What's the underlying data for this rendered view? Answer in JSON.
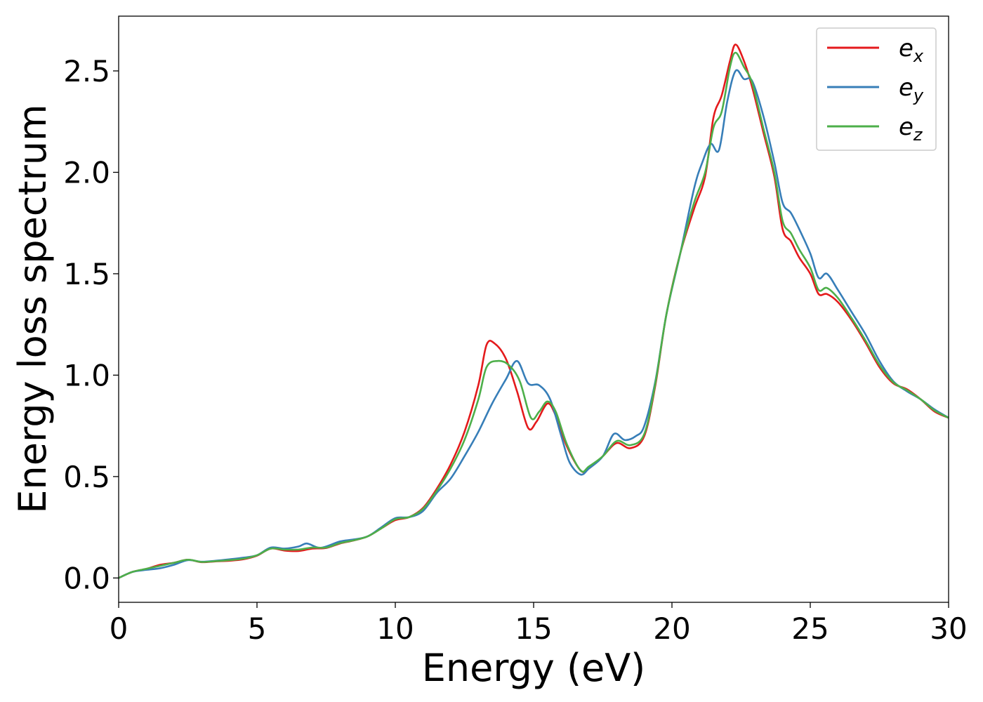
{
  "chart_data": {
    "type": "line",
    "title": "",
    "xlabel": "Energy (eV)",
    "ylabel": "Energy loss spectrum",
    "xlim": [
      0,
      30
    ],
    "ylim": [
      -0.12,
      2.77
    ],
    "xticks": [
      0,
      5,
      10,
      15,
      20,
      25,
      30
    ],
    "xtick_labels": [
      "0",
      "5",
      "10",
      "15",
      "20",
      "25",
      "30"
    ],
    "yticks": [
      0.0,
      0.5,
      1.0,
      1.5,
      2.0,
      2.5
    ],
    "ytick_labels": [
      "0.0",
      "0.5",
      "1.0",
      "1.5",
      "2.0",
      "2.5"
    ],
    "grid": false,
    "legend_position": "top-right",
    "series": [
      {
        "name": "e_x",
        "label_base": "e",
        "label_sub": "x",
        "color": "#e41a1c",
        "points": [
          [
            0,
            0.0
          ],
          [
            0.5,
            0.03
          ],
          [
            1.0,
            0.045
          ],
          [
            1.5,
            0.065
          ],
          [
            2.0,
            0.075
          ],
          [
            2.5,
            0.09
          ],
          [
            3.0,
            0.078
          ],
          [
            3.5,
            0.082
          ],
          [
            4.0,
            0.085
          ],
          [
            4.5,
            0.092
          ],
          [
            5.0,
            0.11
          ],
          [
            5.5,
            0.145
          ],
          [
            6.0,
            0.135
          ],
          [
            6.5,
            0.133
          ],
          [
            7.0,
            0.145
          ],
          [
            7.5,
            0.148
          ],
          [
            8.0,
            0.17
          ],
          [
            8.5,
            0.185
          ],
          [
            9.0,
            0.205
          ],
          [
            9.5,
            0.245
          ],
          [
            10.0,
            0.285
          ],
          [
            10.5,
            0.3
          ],
          [
            11.0,
            0.345
          ],
          [
            11.5,
            0.44
          ],
          [
            12.0,
            0.56
          ],
          [
            12.5,
            0.72
          ],
          [
            13.0,
            0.95
          ],
          [
            13.3,
            1.15
          ],
          [
            13.6,
            1.155
          ],
          [
            14.0,
            1.08
          ],
          [
            14.4,
            0.92
          ],
          [
            14.8,
            0.74
          ],
          [
            15.1,
            0.77
          ],
          [
            15.5,
            0.86
          ],
          [
            15.8,
            0.8
          ],
          [
            16.2,
            0.65
          ],
          [
            16.7,
            0.53
          ],
          [
            17.0,
            0.54
          ],
          [
            17.5,
            0.6
          ],
          [
            18.0,
            0.665
          ],
          [
            18.5,
            0.64
          ],
          [
            19.0,
            0.7
          ],
          [
            19.4,
            0.95
          ],
          [
            19.8,
            1.3
          ],
          [
            20.3,
            1.6
          ],
          [
            20.8,
            1.82
          ],
          [
            21.2,
            1.98
          ],
          [
            21.5,
            2.27
          ],
          [
            21.8,
            2.38
          ],
          [
            22.1,
            2.55
          ],
          [
            22.3,
            2.63
          ],
          [
            22.6,
            2.55
          ],
          [
            22.9,
            2.42
          ],
          [
            23.3,
            2.2
          ],
          [
            23.7,
            1.98
          ],
          [
            24.0,
            1.72
          ],
          [
            24.3,
            1.66
          ],
          [
            24.6,
            1.58
          ],
          [
            25.0,
            1.5
          ],
          [
            25.3,
            1.4
          ],
          [
            25.6,
            1.4
          ],
          [
            26.0,
            1.36
          ],
          [
            26.5,
            1.27
          ],
          [
            27.0,
            1.16
          ],
          [
            27.5,
            1.04
          ],
          [
            28.0,
            0.96
          ],
          [
            28.5,
            0.93
          ],
          [
            29.0,
            0.88
          ],
          [
            29.5,
            0.82
          ],
          [
            30.0,
            0.79
          ]
        ]
      },
      {
        "name": "e_y",
        "label_base": "e",
        "label_sub": "y",
        "color": "#377eb8",
        "points": [
          [
            0,
            0.0
          ],
          [
            0.5,
            0.03
          ],
          [
            1.0,
            0.04
          ],
          [
            1.5,
            0.048
          ],
          [
            2.0,
            0.065
          ],
          [
            2.5,
            0.088
          ],
          [
            3.0,
            0.08
          ],
          [
            3.5,
            0.085
          ],
          [
            4.0,
            0.092
          ],
          [
            4.5,
            0.1
          ],
          [
            5.0,
            0.112
          ],
          [
            5.5,
            0.15
          ],
          [
            6.0,
            0.145
          ],
          [
            6.5,
            0.155
          ],
          [
            6.8,
            0.17
          ],
          [
            7.2,
            0.15
          ],
          [
            7.5,
            0.155
          ],
          [
            8.0,
            0.18
          ],
          [
            8.5,
            0.19
          ],
          [
            9.0,
            0.205
          ],
          [
            9.5,
            0.25
          ],
          [
            10.0,
            0.295
          ],
          [
            10.5,
            0.3
          ],
          [
            11.0,
            0.33
          ],
          [
            11.5,
            0.42
          ],
          [
            12.0,
            0.49
          ],
          [
            12.5,
            0.6
          ],
          [
            13.0,
            0.72
          ],
          [
            13.5,
            0.86
          ],
          [
            14.0,
            0.98
          ],
          [
            14.4,
            1.07
          ],
          [
            14.8,
            0.96
          ],
          [
            15.2,
            0.95
          ],
          [
            15.6,
            0.88
          ],
          [
            16.0,
            0.7
          ],
          [
            16.3,
            0.57
          ],
          [
            16.7,
            0.51
          ],
          [
            17.0,
            0.54
          ],
          [
            17.5,
            0.6
          ],
          [
            17.9,
            0.71
          ],
          [
            18.3,
            0.68
          ],
          [
            18.7,
            0.7
          ],
          [
            19.0,
            0.75
          ],
          [
            19.4,
            0.97
          ],
          [
            19.8,
            1.3
          ],
          [
            20.3,
            1.6
          ],
          [
            20.8,
            1.92
          ],
          [
            21.1,
            2.05
          ],
          [
            21.4,
            2.14
          ],
          [
            21.7,
            2.11
          ],
          [
            22.0,
            2.35
          ],
          [
            22.3,
            2.5
          ],
          [
            22.6,
            2.46
          ],
          [
            22.9,
            2.45
          ],
          [
            23.3,
            2.28
          ],
          [
            23.7,
            2.05
          ],
          [
            24.0,
            1.85
          ],
          [
            24.3,
            1.8
          ],
          [
            24.6,
            1.72
          ],
          [
            25.0,
            1.6
          ],
          [
            25.3,
            1.48
          ],
          [
            25.6,
            1.5
          ],
          [
            26.0,
            1.42
          ],
          [
            26.5,
            1.31
          ],
          [
            27.0,
            1.2
          ],
          [
            27.5,
            1.07
          ],
          [
            28.0,
            0.97
          ],
          [
            28.5,
            0.92
          ],
          [
            29.0,
            0.88
          ],
          [
            29.5,
            0.83
          ],
          [
            30.0,
            0.79
          ]
        ]
      },
      {
        "name": "e_z",
        "label_base": "e",
        "label_sub": "z",
        "color": "#4daf4a",
        "points": [
          [
            0,
            0.0
          ],
          [
            0.5,
            0.03
          ],
          [
            1.0,
            0.045
          ],
          [
            1.5,
            0.06
          ],
          [
            2.0,
            0.075
          ],
          [
            2.5,
            0.09
          ],
          [
            3.0,
            0.079
          ],
          [
            3.5,
            0.083
          ],
          [
            4.0,
            0.088
          ],
          [
            4.5,
            0.095
          ],
          [
            5.0,
            0.112
          ],
          [
            5.5,
            0.145
          ],
          [
            6.0,
            0.14
          ],
          [
            6.5,
            0.14
          ],
          [
            7.0,
            0.15
          ],
          [
            7.5,
            0.15
          ],
          [
            8.0,
            0.172
          ],
          [
            8.5,
            0.186
          ],
          [
            9.0,
            0.205
          ],
          [
            9.5,
            0.245
          ],
          [
            10.0,
            0.29
          ],
          [
            10.5,
            0.3
          ],
          [
            11.0,
            0.34
          ],
          [
            11.5,
            0.43
          ],
          [
            12.0,
            0.54
          ],
          [
            12.5,
            0.68
          ],
          [
            13.0,
            0.88
          ],
          [
            13.3,
            1.04
          ],
          [
            13.7,
            1.07
          ],
          [
            14.1,
            1.05
          ],
          [
            14.5,
            0.97
          ],
          [
            14.9,
            0.79
          ],
          [
            15.2,
            0.82
          ],
          [
            15.5,
            0.87
          ],
          [
            15.8,
            0.82
          ],
          [
            16.2,
            0.66
          ],
          [
            16.7,
            0.53
          ],
          [
            17.0,
            0.55
          ],
          [
            17.5,
            0.6
          ],
          [
            18.0,
            0.675
          ],
          [
            18.5,
            0.655
          ],
          [
            19.0,
            0.71
          ],
          [
            19.4,
            0.96
          ],
          [
            19.8,
            1.3
          ],
          [
            20.3,
            1.6
          ],
          [
            20.8,
            1.85
          ],
          [
            21.2,
            2.0
          ],
          [
            21.5,
            2.22
          ],
          [
            21.8,
            2.3
          ],
          [
            22.1,
            2.52
          ],
          [
            22.3,
            2.59
          ],
          [
            22.6,
            2.52
          ],
          [
            22.9,
            2.44
          ],
          [
            23.3,
            2.22
          ],
          [
            23.7,
            2.0
          ],
          [
            24.0,
            1.76
          ],
          [
            24.3,
            1.7
          ],
          [
            24.6,
            1.62
          ],
          [
            25.0,
            1.53
          ],
          [
            25.3,
            1.42
          ],
          [
            25.6,
            1.43
          ],
          [
            26.0,
            1.38
          ],
          [
            26.5,
            1.28
          ],
          [
            27.0,
            1.17
          ],
          [
            27.5,
            1.05
          ],
          [
            28.0,
            0.965
          ],
          [
            28.5,
            0.925
          ],
          [
            29.0,
            0.88
          ],
          [
            29.5,
            0.825
          ],
          [
            30.0,
            0.79
          ]
        ]
      }
    ]
  }
}
